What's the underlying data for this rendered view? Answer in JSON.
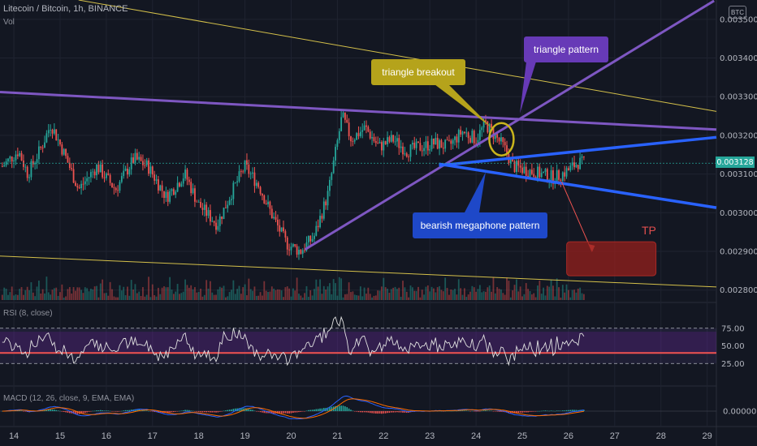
{
  "header": {
    "title": "Litecoin / Bitcoin, 1h, BINANCE",
    "volume": "Vol"
  },
  "badges": {
    "currency": "BTC"
  },
  "indicators": {
    "rsi_label": "RSI (8, close)",
    "macd_label": "MACD (12, 26, close, 9, EMA, EMA)"
  },
  "annotations": {
    "triangle_breakout": "triangle breakout",
    "triangle_pattern": "triangle pattern",
    "bearish_megaphone": "bearish megaphone pattern",
    "tp": "TP"
  },
  "colors": {
    "background": "#131722",
    "up": "#26a69a",
    "down": "#ef5350",
    "purple": "#7e57c2",
    "blue": "#2962ff",
    "yellow_line": "#d4c04a",
    "breakout_box": "#b5a31b",
    "tp_box": "#7a1f1a"
  },
  "chart_data": {
    "type": "candlestick",
    "symbol": "Litecoin / Bitcoin",
    "interval": "1h",
    "exchange": "BINANCE",
    "current_price": "0.003128",
    "price_ticks": [
      "0.002800",
      "0.002900",
      "0.003000",
      "0.003100",
      "0.003200",
      "0.003300",
      "0.003400",
      "0.003500"
    ],
    "price_range": [
      0.00277,
      0.00355
    ],
    "time_ticks": [
      "14",
      "15",
      "16",
      "17",
      "18",
      "19",
      "20",
      "21",
      "22",
      "23",
      "24",
      "25",
      "26",
      "27",
      "28",
      "29"
    ],
    "time_range_days": [
      13.7,
      29.2
    ],
    "rsi": {
      "ticks": [
        "25.00",
        "50.00",
        "75.00"
      ],
      "range": [
        0,
        100
      ]
    },
    "macd": {
      "ticks": [
        "0.000000"
      ]
    },
    "close_path": [
      [
        13.75,
        0.00312
      ],
      [
        14.1,
        0.00316
      ],
      [
        14.3,
        0.0031
      ],
      [
        14.6,
        0.00317
      ],
      [
        14.8,
        0.00323
      ],
      [
        15.1,
        0.00315
      ],
      [
        15.4,
        0.00306
      ],
      [
        15.8,
        0.00312
      ],
      [
        16.2,
        0.00306
      ],
      [
        16.6,
        0.00314
      ],
      [
        16.9,
        0.00312
      ],
      [
        17.3,
        0.00304
      ],
      [
        17.7,
        0.0031
      ],
      [
        18.0,
        0.00302
      ],
      [
        18.4,
        0.00297
      ],
      [
        18.7,
        0.00305
      ],
      [
        19.0,
        0.00312
      ],
      [
        19.3,
        0.00307
      ],
      [
        19.6,
        0.00299
      ],
      [
        19.9,
        0.00292
      ],
      [
        20.2,
        0.0029
      ],
      [
        20.5,
        0.00294
      ],
      [
        20.8,
        0.00305
      ],
      [
        20.95,
        0.00315
      ],
      [
        21.1,
        0.00325
      ],
      [
        21.3,
        0.00319
      ],
      [
        21.6,
        0.00322
      ],
      [
        21.9,
        0.00317
      ],
      [
        22.2,
        0.00319
      ],
      [
        22.5,
        0.00316
      ],
      [
        22.8,
        0.00317
      ],
      [
        23.1,
        0.00318
      ],
      [
        23.4,
        0.00317
      ],
      [
        23.7,
        0.00321
      ],
      [
        24.0,
        0.00319
      ],
      [
        24.2,
        0.00323
      ],
      [
        24.4,
        0.0032
      ],
      [
        24.6,
        0.00317
      ],
      [
        24.8,
        0.00312
      ],
      [
        25.1,
        0.00311
      ],
      [
        25.4,
        0.0031
      ],
      [
        25.7,
        0.00309
      ],
      [
        26.0,
        0.00311
      ],
      [
        26.2,
        0.00313
      ],
      [
        26.35,
        0.003128
      ]
    ]
  }
}
